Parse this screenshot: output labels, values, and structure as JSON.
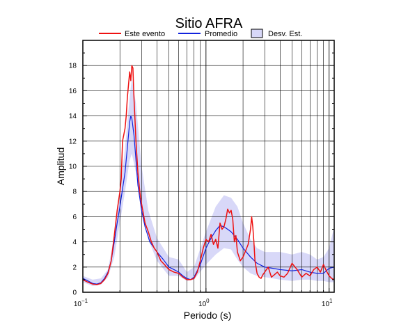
{
  "chart_data": {
    "type": "line",
    "title": "Sitio AFRA",
    "xlabel": "Periodo (s)",
    "ylabel": "Amplitud",
    "x_scale": "log",
    "xlim": [
      0.1,
      11
    ],
    "ylim": [
      0,
      20
    ],
    "grid": true,
    "legend_placement": "top-center",
    "x_tick_labels": [
      {
        "value": 0.1,
        "base": "10",
        "exp": "−1"
      },
      {
        "value": 1,
        "base": "10",
        "exp": "0"
      },
      {
        "value": 10,
        "base": "10",
        "exp": "1"
      }
    ],
    "y_ticks": [
      0,
      2,
      4,
      6,
      8,
      10,
      12,
      14,
      16,
      18
    ],
    "legend": [
      {
        "label": "Este evento",
        "kind": "line",
        "color": "#ee1111"
      },
      {
        "label": "Promedio",
        "kind": "line",
        "color": "#1122dd"
      },
      {
        "label": "Desv. Est.",
        "kind": "box",
        "color": "#d8d8f8"
      }
    ],
    "band": {
      "name": "Desv. Est.",
      "color": "#d8d8f8",
      "x": [
        0.1,
        0.12,
        0.14,
        0.16,
        0.18,
        0.2,
        0.22,
        0.24,
        0.25,
        0.27,
        0.3,
        0.34,
        0.4,
        0.5,
        0.6,
        0.7,
        0.8,
        1.0,
        1.2,
        1.4,
        1.6,
        1.8,
        2.0,
        2.3,
        2.6,
        3.0,
        3.5,
        4.0,
        5.0,
        6.0,
        7.0,
        8.0,
        9.0,
        10.0,
        11.0
      ],
      "lower": [
        0.8,
        0.5,
        0.6,
        1.2,
        2.8,
        5.5,
        8.0,
        10.5,
        11.0,
        9.5,
        6.5,
        4.2,
        2.5,
        1.3,
        1.3,
        0.9,
        1.0,
        2.2,
        3.0,
        3.5,
        3.4,
        2.6,
        2.0,
        1.5,
        1.3,
        1.2,
        1.1,
        1.0,
        0.9,
        1.0,
        1.0,
        0.9,
        0.9,
        0.8,
        0.8
      ],
      "upper": [
        1.3,
        1.0,
        1.1,
        1.8,
        4.5,
        7.8,
        11.5,
        15.5,
        17.0,
        15.0,
        10.0,
        6.5,
        4.3,
        2.8,
        2.6,
        1.6,
        2.0,
        4.8,
        6.8,
        7.7,
        7.5,
        6.8,
        5.5,
        4.2,
        3.5,
        3.2,
        3.2,
        3.2,
        3.0,
        3.2,
        3.0,
        2.6,
        2.8,
        3.5,
        5.2
      ]
    },
    "series": [
      {
        "name": "Promedio",
        "color": "#1122dd",
        "x": [
          0.1,
          0.11,
          0.12,
          0.13,
          0.14,
          0.15,
          0.16,
          0.17,
          0.18,
          0.19,
          0.2,
          0.21,
          0.22,
          0.23,
          0.24,
          0.245,
          0.25,
          0.26,
          0.27,
          0.28,
          0.3,
          0.32,
          0.35,
          0.4,
          0.45,
          0.5,
          0.55,
          0.6,
          0.65,
          0.7,
          0.75,
          0.8,
          0.9,
          1.0,
          1.1,
          1.2,
          1.3,
          1.4,
          1.5,
          1.6,
          1.8,
          2.0,
          2.3,
          2.6,
          3.0,
          3.5,
          4.0,
          5.0,
          6.0,
          7.0,
          8.0,
          9.0,
          10.0,
          11.0
        ],
        "y": [
          1.1,
          0.9,
          0.7,
          0.65,
          0.75,
          1.1,
          1.6,
          2.5,
          4.0,
          5.5,
          6.8,
          8.2,
          9.5,
          11.5,
          13.5,
          14.0,
          13.8,
          12.5,
          10.5,
          8.5,
          6.5,
          5.2,
          4.0,
          3.2,
          2.6,
          2.0,
          1.8,
          1.6,
          1.3,
          1.1,
          1.0,
          1.2,
          2.2,
          3.5,
          4.3,
          4.9,
          5.3,
          5.2,
          5.0,
          4.8,
          4.2,
          3.5,
          2.8,
          2.3,
          2.0,
          1.9,
          1.8,
          1.7,
          1.8,
          1.6,
          1.5,
          1.5,
          1.9,
          2.0
        ]
      },
      {
        "name": "Este evento",
        "color": "#ee1111",
        "x": [
          0.1,
          0.11,
          0.12,
          0.13,
          0.14,
          0.15,
          0.16,
          0.17,
          0.18,
          0.19,
          0.2,
          0.205,
          0.21,
          0.215,
          0.22,
          0.225,
          0.23,
          0.235,
          0.24,
          0.245,
          0.25,
          0.255,
          0.26,
          0.27,
          0.28,
          0.29,
          0.3,
          0.32,
          0.34,
          0.36,
          0.38,
          0.4,
          0.43,
          0.46,
          0.5,
          0.55,
          0.6,
          0.65,
          0.7,
          0.75,
          0.8,
          0.85,
          0.9,
          0.95,
          1.0,
          1.05,
          1.1,
          1.15,
          1.2,
          1.25,
          1.3,
          1.35,
          1.4,
          1.45,
          1.5,
          1.55,
          1.6,
          1.65,
          1.7,
          1.75,
          1.8,
          1.9,
          2.0,
          2.1,
          2.2,
          2.3,
          2.35,
          2.4,
          2.45,
          2.5,
          2.6,
          2.7,
          2.8,
          2.9,
          3.0,
          3.2,
          3.4,
          3.6,
          3.8,
          4.0,
          4.3,
          4.6,
          5.0,
          5.5,
          6.0,
          6.5,
          7.0,
          7.5,
          8.0,
          8.5,
          9.0,
          9.5,
          10.0,
          10.5,
          11.0
        ],
        "y": [
          1.0,
          0.8,
          0.65,
          0.6,
          0.7,
          1.0,
          1.5,
          2.5,
          4.5,
          6.5,
          8.0,
          9.0,
          12.0,
          12.5,
          13.0,
          14.0,
          15.5,
          16.5,
          17.5,
          16.8,
          18.0,
          17.8,
          15.5,
          12.0,
          9.5,
          8.0,
          7.0,
          5.5,
          4.8,
          4.0,
          3.5,
          3.2,
          2.5,
          2.2,
          1.8,
          1.6,
          1.5,
          1.2,
          1.0,
          1.0,
          1.1,
          1.6,
          2.5,
          3.5,
          4.2,
          4.0,
          4.6,
          3.8,
          4.2,
          3.5,
          5.5,
          5.0,
          5.2,
          5.8,
          6.6,
          6.3,
          6.5,
          5.8,
          4.0,
          4.5,
          3.2,
          2.5,
          2.8,
          3.3,
          3.8,
          5.0,
          6.0,
          5.2,
          4.0,
          2.5,
          1.5,
          1.2,
          1.1,
          1.4,
          1.6,
          2.0,
          1.2,
          1.4,
          1.6,
          1.3,
          1.2,
          1.5,
          2.3,
          1.8,
          1.2,
          1.5,
          1.3,
          1.8,
          2.0,
          1.6,
          2.2,
          1.7,
          1.3,
          1.1,
          1.0
        ]
      }
    ]
  }
}
